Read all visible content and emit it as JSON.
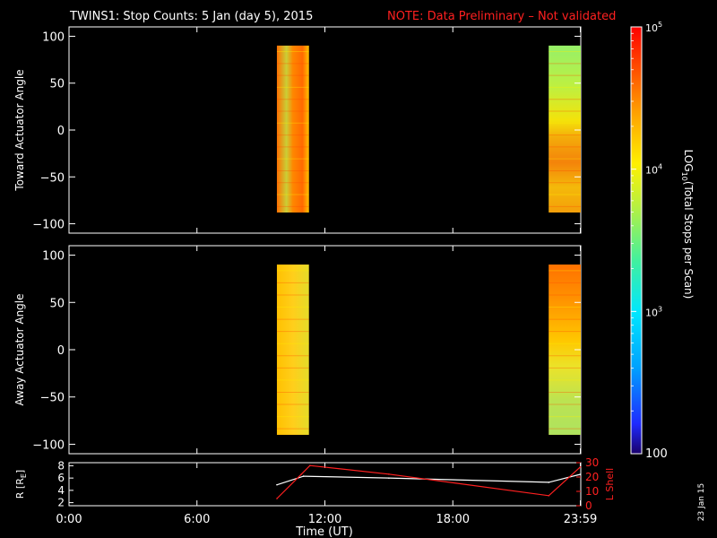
{
  "title": {
    "main": "TWINS1: Stop Counts:  5 Jan (day   5), 2015",
    "note": "NOTE: Data Preliminary – Not validated",
    "note_color": "#ff2020"
  },
  "stamp": "23 Jan 15",
  "chart_data": [
    {
      "type": "heatmap",
      "panel": "top",
      "ylabel": "Toward Actuator Angle",
      "ylim": [
        -110,
        110
      ],
      "yticks": [
        100,
        50,
        0,
        -50,
        -100
      ],
      "xlim": [
        0,
        24
      ],
      "color_scale": "log10",
      "blocks": [
        {
          "x_start_hour": 9.75,
          "x_end_hour": 11.25,
          "y_min": -88,
          "y_max": 90,
          "dominant_color": "#ff6a00"
        },
        {
          "x_start_hour": 22.5,
          "x_end_hour": 24.0,
          "y_min": -88,
          "y_max": 90,
          "dominant_color": "#b8f040"
        }
      ]
    },
    {
      "type": "heatmap",
      "panel": "middle",
      "ylabel": "Away Actuator Angle",
      "ylim": [
        -110,
        110
      ],
      "yticks": [
        100,
        50,
        0,
        -50,
        -100
      ],
      "xlim": [
        0,
        24
      ],
      "color_scale": "log10",
      "blocks": [
        {
          "x_start_hour": 9.75,
          "x_end_hour": 11.25,
          "y_min": -90,
          "y_max": 90,
          "dominant_color": "#ff6a00"
        },
        {
          "x_start_hour": 22.5,
          "x_end_hour": 24.0,
          "y_min": -90,
          "y_max": 90,
          "dominant_color": "#ff9a00"
        }
      ]
    },
    {
      "type": "line",
      "panel": "bottom",
      "ylabel_left": "R [RE]",
      "ylabel_left_main": "R [R",
      "ylabel_left_sub": "E",
      "ylabel_left_end": "]",
      "ylabel_right": "L Shell",
      "ylim_left": [
        1.5,
        8.5
      ],
      "yticks_left": [
        8,
        6,
        4,
        2
      ],
      "ylim_right": [
        0,
        30
      ],
      "yticks_right": [
        30,
        20,
        10,
        0
      ],
      "xlim": [
        0,
        24
      ],
      "xticks": [
        "0:00",
        "6:00",
        "12:00",
        "18:00",
        "23:59"
      ],
      "xtick_hours": [
        0,
        6,
        12,
        18,
        23.98
      ],
      "xlabel": "Time (UT)",
      "series": [
        {
          "axis": "left",
          "color": "#ffffff",
          "x": [
            9.75,
            11.0,
            15.0,
            22.5,
            23.98
          ],
          "y": [
            4.9,
            6.3,
            6.0,
            5.3,
            6.6
          ]
        },
        {
          "axis": "right",
          "color": "#ff2020",
          "x": [
            9.75,
            10.9,
            11.3,
            15.0,
            22.5,
            23.98
          ],
          "y": [
            5,
            22,
            28,
            22,
            7,
            27
          ]
        }
      ]
    }
  ],
  "colorbar": {
    "label": "LOG10(Total Stops per Scan)",
    "label_main": "LOG",
    "label_sub": "10",
    "label_end": "(Total Stops per Scan)",
    "ticks": [
      {
        "base": "10",
        "exp": "5",
        "value": 100000
      },
      {
        "base": "10",
        "exp": "4",
        "value": 10000
      },
      {
        "base": "10",
        "exp": "3",
        "value": 1000
      }
    ],
    "bottom_label": "100",
    "range": [
      100,
      100000
    ],
    "scale": "log"
  }
}
